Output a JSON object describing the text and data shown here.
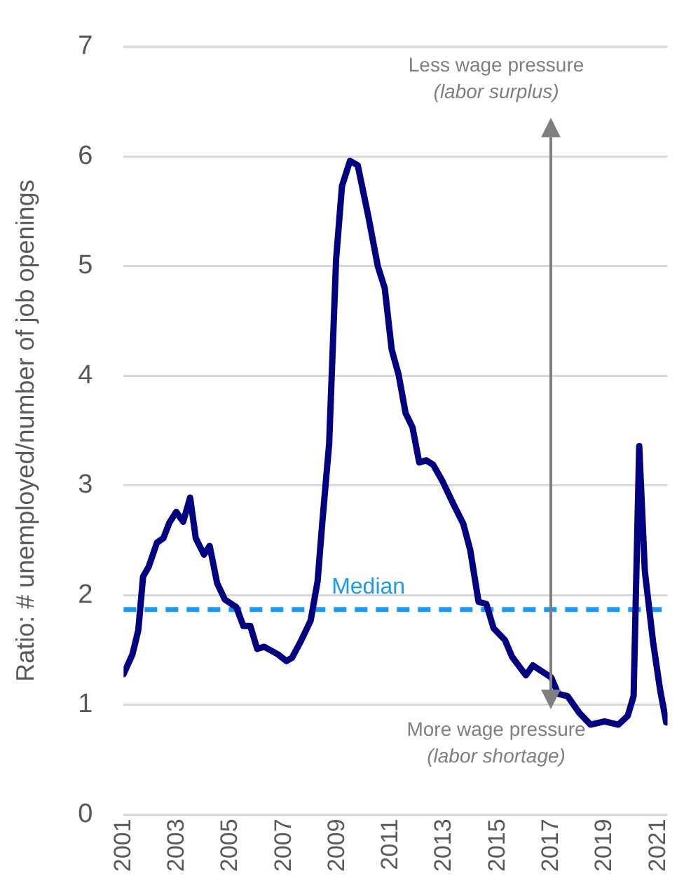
{
  "chart_data": {
    "type": "line",
    "ylabel": "Ratio: # unemployed/number of job openings",
    "x": [
      2001.0,
      2001.33,
      2001.55,
      2001.73,
      2001.94,
      2002.25,
      2002.49,
      2002.71,
      2002.97,
      2003.23,
      2003.49,
      2003.7,
      2004.01,
      2004.22,
      2004.5,
      2004.79,
      2005.22,
      2005.48,
      2005.74,
      2006.0,
      2006.26,
      2006.78,
      2007.09,
      2007.3,
      2007.65,
      2008.0,
      2008.26,
      2008.43,
      2008.69,
      2008.95,
      2009.17,
      2009.47,
      2009.76,
      2010.16,
      2010.51,
      2010.77,
      2011.03,
      2011.29,
      2011.55,
      2011.81,
      2012.06,
      2012.32,
      2012.58,
      2012.93,
      2013.36,
      2013.71,
      2013.97,
      2014.28,
      2014.57,
      2014.84,
      2015.27,
      2015.53,
      2016.05,
      2016.31,
      2017.0,
      2017.26,
      2017.61,
      2018.04,
      2018.47,
      2018.99,
      2019.51,
      2019.86,
      2020.08,
      2020.29,
      2020.5,
      2020.81,
      2021.07,
      2021.3
    ],
    "series": [
      {
        "color": "#000080",
        "values": [
          1.28,
          1.46,
          1.68,
          2.17,
          2.26,
          2.48,
          2.52,
          2.66,
          2.76,
          2.67,
          2.89,
          2.52,
          2.37,
          2.45,
          2.11,
          1.96,
          1.89,
          1.72,
          1.72,
          1.51,
          1.53,
          1.46,
          1.4,
          1.43,
          1.59,
          1.77,
          2.13,
          2.65,
          3.38,
          5.06,
          5.73,
          5.96,
          5.92,
          5.45,
          5.0,
          4.8,
          4.24,
          4.01,
          3.66,
          3.53,
          3.21,
          3.23,
          3.19,
          3.04,
          2.82,
          2.65,
          2.41,
          1.94,
          1.92,
          1.7,
          1.59,
          1.44,
          1.27,
          1.36,
          1.25,
          1.1,
          1.08,
          0.93,
          0.82,
          0.85,
          0.82,
          0.9,
          1.08,
          3.36,
          2.22,
          1.57,
          1.14,
          0.84
        ]
      }
    ],
    "xlim": [
      2001,
      2021.35
    ],
    "xticks": [
      2001,
      2003,
      2005,
      2007,
      2009,
      2011,
      2013,
      2015,
      2017,
      2019,
      2021
    ],
    "ylim": [
      0,
      7
    ],
    "yticks": [
      0,
      1,
      2,
      3,
      4,
      5,
      6,
      7
    ],
    "grid": "y",
    "legend": false,
    "marker": "none",
    "line_style": "solid",
    "ref_lines": [
      {
        "axis": "y",
        "value": 1.87,
        "label": "Median",
        "color": "#1a9af5",
        "line_style": "dashed"
      }
    ],
    "annotations": [
      "Less wage pressure",
      "(labor surplus)",
      "More wage pressure",
      "(labor shortage)"
    ]
  }
}
